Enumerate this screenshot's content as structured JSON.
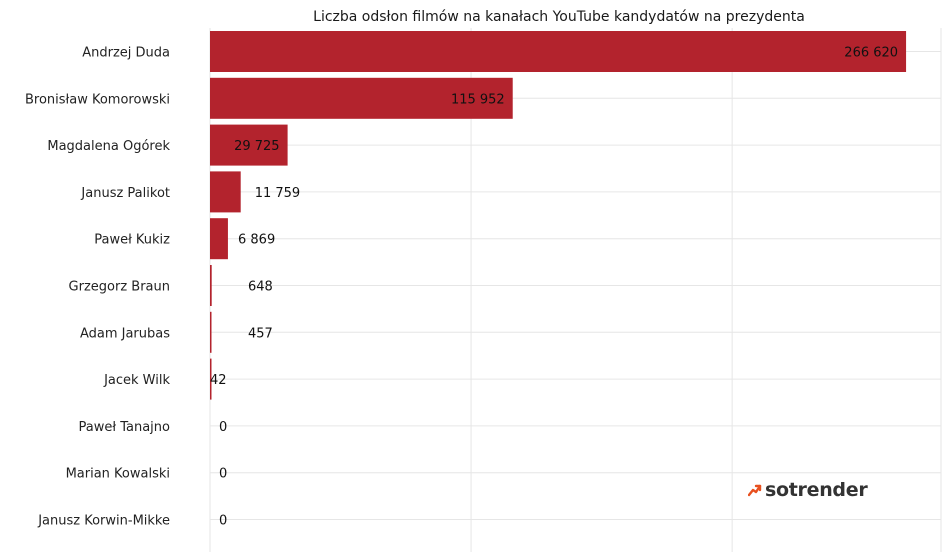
{
  "brand": {
    "logo_text": "sotrender",
    "accent_color": "#e8501f"
  },
  "chart_data": {
    "type": "bar",
    "orientation": "horizontal",
    "title": "Liczba odsłon filmów na kanałach YouTube kandydatów na prezydenta",
    "xlabel": "",
    "ylabel": "",
    "bar_color": "#b3232d",
    "grid": true,
    "xlim": [
      0,
      280000
    ],
    "categories": [
      "Andrzej Duda",
      "Bronisław Komorowski",
      "Magdalena Ogórek",
      "Janusz Palikot",
      "Paweł Kukiz",
      "Grzegorz Braun",
      "Adam Jarubas",
      "Jacek Wilk",
      "Paweł Tanajno",
      "Marian Kowalski",
      "Janusz Korwin-Mikke"
    ],
    "values": [
      266620,
      115952,
      29725,
      11759,
      6869,
      648,
      457,
      42,
      0,
      0,
      0
    ],
    "value_labels": [
      "266 620",
      "115 952",
      "29 725",
      "11 759",
      "6 869",
      "648",
      "457",
      "42",
      "0",
      "0",
      "0"
    ]
  }
}
